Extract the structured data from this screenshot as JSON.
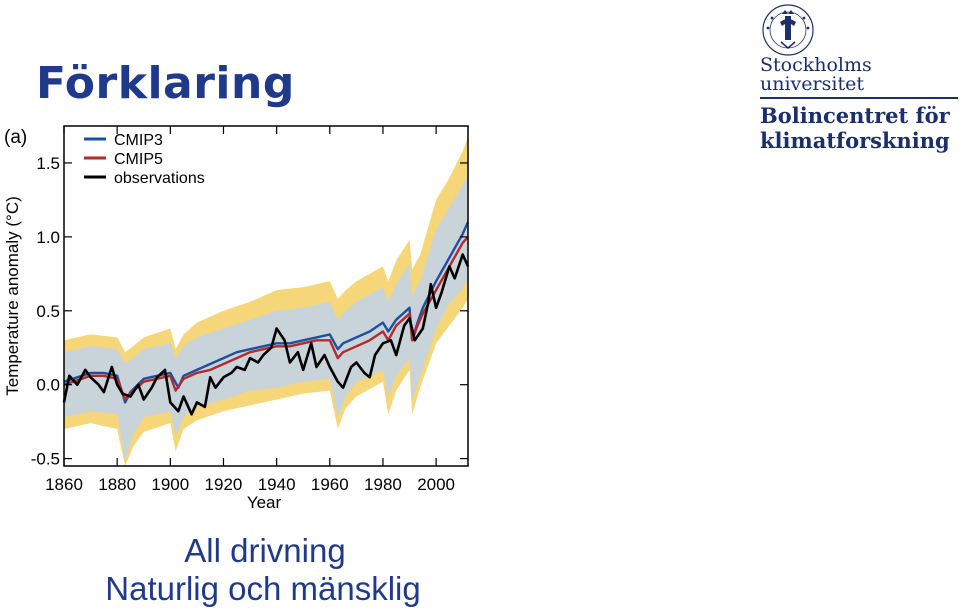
{
  "slide": {
    "title": "Förklaring",
    "caption_line1": "All drivning",
    "caption_line2": "Naturlig och mänsklig"
  },
  "logo": {
    "seal_text": "UNIVERSITET STOCKHOLMS",
    "name_line1": "Stockholms",
    "name_line2": "universitet",
    "dept_line1": "Bolincentret för",
    "dept_line2": "klimatforskning"
  },
  "colors": {
    "title": "#1f3a8a",
    "cmip3": "#1f4fa0",
    "cmip5": "#b52a2a",
    "observations": "#000000",
    "cmip3_members": "#bfd3ea",
    "cmip5_members": "#f2c94c"
  },
  "chart_data": {
    "type": "line",
    "panel_label": "(a)",
    "xlabel": "Year",
    "ylabel": "Temperature anomaly (°C)",
    "xlim": [
      1860,
      2012
    ],
    "ylim": [
      -0.55,
      1.75
    ],
    "x_ticks": [
      1860,
      1880,
      1900,
      1920,
      1940,
      1960,
      1980,
      2000
    ],
    "y_ticks": [
      -0.5,
      0.0,
      0.5,
      1.0,
      1.5
    ],
    "y_tick_labels": [
      "-0.5",
      "0.0",
      "0.5",
      "1.0",
      "1.5"
    ],
    "legend_position": "top-left",
    "series": [
      {
        "name": "CMIP3",
        "color": "#1f4fa0",
        "x": [
          1860,
          1865,
          1870,
          1875,
          1880,
          1883,
          1885,
          1890,
          1895,
          1900,
          1903,
          1905,
          1910,
          1915,
          1920,
          1925,
          1930,
          1935,
          1940,
          1945,
          1950,
          1955,
          1960,
          1963,
          1965,
          1970,
          1975,
          1980,
          1982,
          1985,
          1990,
          1991,
          1993,
          1995,
          2000,
          2005,
          2010,
          2012
        ],
        "y": [
          0.02,
          0.05,
          0.08,
          0.08,
          0.06,
          -0.12,
          -0.05,
          0.04,
          0.06,
          0.08,
          -0.02,
          0.06,
          0.1,
          0.14,
          0.18,
          0.22,
          0.24,
          0.26,
          0.28,
          0.28,
          0.3,
          0.32,
          0.34,
          0.24,
          0.28,
          0.32,
          0.36,
          0.42,
          0.36,
          0.44,
          0.52,
          0.3,
          0.42,
          0.52,
          0.7,
          0.86,
          1.02,
          1.1
        ]
      },
      {
        "name": "CMIP5",
        "color": "#b52a2a",
        "x": [
          1860,
          1865,
          1870,
          1875,
          1880,
          1883,
          1885,
          1890,
          1895,
          1900,
          1902,
          1905,
          1910,
          1915,
          1920,
          1925,
          1930,
          1935,
          1940,
          1945,
          1950,
          1955,
          1960,
          1963,
          1965,
          1970,
          1975,
          1980,
          1982,
          1985,
          1990,
          1991,
          1993,
          1995,
          2000,
          2005,
          2010,
          2012
        ],
        "y": [
          0.0,
          0.03,
          0.06,
          0.06,
          0.04,
          -0.1,
          -0.06,
          0.02,
          0.04,
          0.06,
          -0.04,
          0.04,
          0.08,
          0.1,
          0.14,
          0.18,
          0.22,
          0.24,
          0.26,
          0.26,
          0.28,
          0.3,
          0.3,
          0.18,
          0.22,
          0.26,
          0.3,
          0.36,
          0.3,
          0.4,
          0.48,
          0.3,
          0.4,
          0.48,
          0.64,
          0.8,
          0.96,
          1.0
        ]
      },
      {
        "name": "observations",
        "color": "#000000",
        "x": [
          1860,
          1862,
          1865,
          1868,
          1870,
          1873,
          1875,
          1878,
          1880,
          1882,
          1885,
          1888,
          1890,
          1893,
          1895,
          1898,
          1900,
          1903,
          1905,
          1908,
          1910,
          1913,
          1915,
          1917,
          1920,
          1923,
          1925,
          1928,
          1930,
          1933,
          1935,
          1938,
          1940,
          1943,
          1945,
          1948,
          1950,
          1953,
          1955,
          1958,
          1960,
          1963,
          1965,
          1968,
          1970,
          1973,
          1975,
          1977,
          1980,
          1983,
          1985,
          1988,
          1990,
          1992,
          1995,
          1997,
          1998,
          2000,
          2002,
          2005,
          2007,
          2010,
          2012
        ],
        "y": [
          -0.12,
          0.06,
          0.0,
          0.1,
          0.05,
          0.0,
          -0.05,
          0.12,
          0.0,
          -0.06,
          -0.08,
          0.0,
          -0.1,
          -0.02,
          0.05,
          0.1,
          -0.12,
          -0.18,
          -0.08,
          -0.2,
          -0.12,
          -0.15,
          0.05,
          -0.02,
          0.05,
          0.08,
          0.12,
          0.1,
          0.18,
          0.15,
          0.2,
          0.25,
          0.38,
          0.3,
          0.15,
          0.22,
          0.1,
          0.28,
          0.12,
          0.2,
          0.12,
          0.02,
          -0.02,
          0.12,
          0.15,
          0.08,
          0.05,
          0.2,
          0.28,
          0.3,
          0.2,
          0.4,
          0.45,
          0.3,
          0.38,
          0.55,
          0.68,
          0.52,
          0.62,
          0.8,
          0.72,
          0.88,
          0.8
        ]
      }
    ],
    "ensemble_members": {
      "cmip3_band": {
        "x": [
          1860,
          1870,
          1880,
          1883,
          1886,
          1890,
          1900,
          1902,
          1905,
          1910,
          1920,
          1930,
          1940,
          1950,
          1960,
          1963,
          1966,
          1970,
          1980,
          1982,
          1985,
          1990,
          1991,
          1994,
          2000,
          2005,
          2010,
          2012
        ],
        "low": [
          -0.22,
          -0.18,
          -0.2,
          -0.52,
          -0.34,
          -0.22,
          -0.18,
          -0.35,
          -0.22,
          -0.15,
          -0.1,
          -0.04,
          -0.02,
          0.02,
          0.04,
          -0.22,
          -0.08,
          0.02,
          0.1,
          -0.08,
          0.06,
          0.18,
          -0.1,
          0.06,
          0.38,
          0.55,
          0.65,
          0.72
        ],
        "high": [
          0.22,
          0.26,
          0.24,
          0.14,
          0.18,
          0.24,
          0.28,
          0.18,
          0.26,
          0.32,
          0.38,
          0.44,
          0.5,
          0.52,
          0.56,
          0.44,
          0.5,
          0.56,
          0.66,
          0.56,
          0.68,
          0.82,
          0.6,
          0.7,
          1.05,
          1.2,
          1.35,
          1.42
        ]
      },
      "cmip5_band": {
        "x": [
          1860,
          1870,
          1880,
          1883,
          1886,
          1890,
          1900,
          1902,
          1905,
          1910,
          1920,
          1930,
          1940,
          1950,
          1960,
          1963,
          1966,
          1970,
          1980,
          1982,
          1985,
          1990,
          1991,
          1994,
          2000,
          2005,
          2010,
          2012
        ],
        "low": [
          -0.3,
          -0.26,
          -0.3,
          -0.55,
          -0.42,
          -0.32,
          -0.26,
          -0.45,
          -0.3,
          -0.24,
          -0.18,
          -0.14,
          -0.1,
          -0.06,
          -0.04,
          -0.3,
          -0.16,
          -0.08,
          0.02,
          -0.2,
          -0.04,
          0.1,
          -0.2,
          -0.02,
          0.28,
          0.4,
          0.52,
          0.58
        ],
        "high": [
          0.3,
          0.34,
          0.32,
          0.22,
          0.26,
          0.32,
          0.38,
          0.24,
          0.34,
          0.42,
          0.5,
          0.56,
          0.64,
          0.66,
          0.7,
          0.58,
          0.64,
          0.7,
          0.8,
          0.7,
          0.84,
          0.98,
          0.78,
          0.88,
          1.25,
          1.4,
          1.58,
          1.68
        ]
      }
    }
  }
}
